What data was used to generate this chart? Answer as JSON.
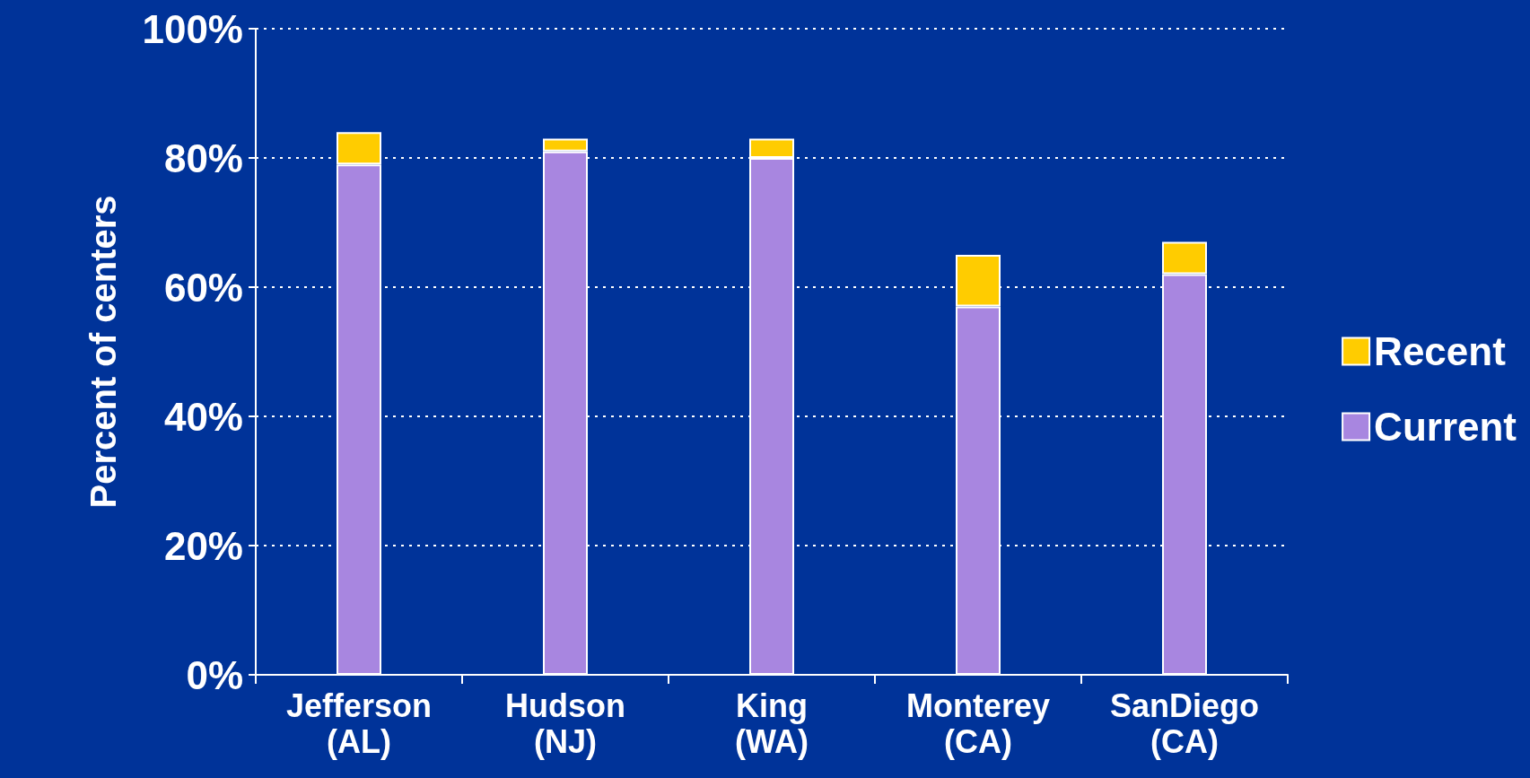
{
  "chart_data": {
    "type": "bar",
    "stacked": true,
    "ylabel": "Percent of centers",
    "categories": [
      "Jefferson\n(AL)",
      "Hudson\n(NJ)",
      "King\n(WA)",
      "Monterey\n(CA)",
      "SanDiego\n(CA)"
    ],
    "series": [
      {
        "name": "Current",
        "color": "#a886e0",
        "values": [
          79,
          81,
          80,
          57,
          62
        ]
      },
      {
        "name": "Recent",
        "color": "#ffcc00",
        "values": [
          5,
          2,
          3,
          8,
          5
        ]
      }
    ],
    "ylim": [
      0,
      100
    ],
    "yticks": [
      {
        "value": 0,
        "label": "0%"
      },
      {
        "value": 20,
        "label": "20%"
      },
      {
        "value": 40,
        "label": "40%"
      },
      {
        "value": 60,
        "label": "60%"
      },
      {
        "value": 80,
        "label": "80%"
      },
      {
        "value": 100,
        "label": "100%"
      }
    ],
    "grid": "y",
    "legend": "right"
  }
}
